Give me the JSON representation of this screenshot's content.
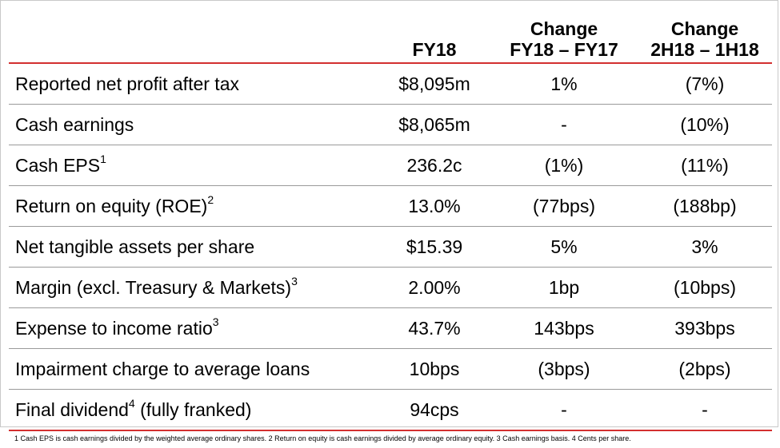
{
  "header": {
    "fy18": "FY18",
    "change1_line1": "Change",
    "change1_line2": "FY18 – FY17",
    "change2_line1": "Change",
    "change2_line2": "2H18 – 1H18"
  },
  "rows": [
    {
      "label": "Reported net profit after tax",
      "sup": "",
      "suffix": "",
      "fy18": "$8,095m",
      "change1": "1%",
      "change2": "(7%)"
    },
    {
      "label": "Cash earnings",
      "sup": "",
      "suffix": "",
      "fy18": "$8,065m",
      "change1": "-",
      "change2": "(10%)"
    },
    {
      "label": "Cash EPS",
      "sup": "1",
      "suffix": "",
      "fy18": "236.2c",
      "change1": "(1%)",
      "change2": "(11%)"
    },
    {
      "label": "Return on equity (ROE)",
      "sup": "2",
      "suffix": "",
      "fy18": "13.0%",
      "change1": "(77bps)",
      "change2": "(188bp)"
    },
    {
      "label": "Net tangible assets per share",
      "sup": "",
      "suffix": "",
      "fy18": "$15.39",
      "change1": "5%",
      "change2": "3%"
    },
    {
      "label": "Margin (excl. Treasury & Markets)",
      "sup": "3",
      "suffix": "",
      "fy18": "2.00%",
      "change1": "1bp",
      "change2": "(10bps)"
    },
    {
      "label": "Expense to income ratio",
      "sup": "3",
      "suffix": "",
      "fy18": "43.7%",
      "change1": "143bps",
      "change2": "393bps"
    },
    {
      "label": "Impairment charge to average loans",
      "sup": "",
      "suffix": "",
      "fy18": "10bps",
      "change1": "(3bps)",
      "change2": "(2bps)"
    },
    {
      "label": "Final dividend",
      "sup": "4",
      "suffix": " (fully franked)",
      "fy18": "94cps",
      "change1": "-",
      "change2": "-"
    }
  ],
  "footnote": "1 Cash EPS is cash earnings divided by the weighted average ordinary shares. 2 Return on equity is cash earnings divided by average ordinary equity. 3 Cash earnings basis.  4 Cents per share.",
  "colors": {
    "accent_rule": "#d32f2f",
    "row_rule": "#9a9a9a",
    "frame": "#c9c9c9"
  }
}
